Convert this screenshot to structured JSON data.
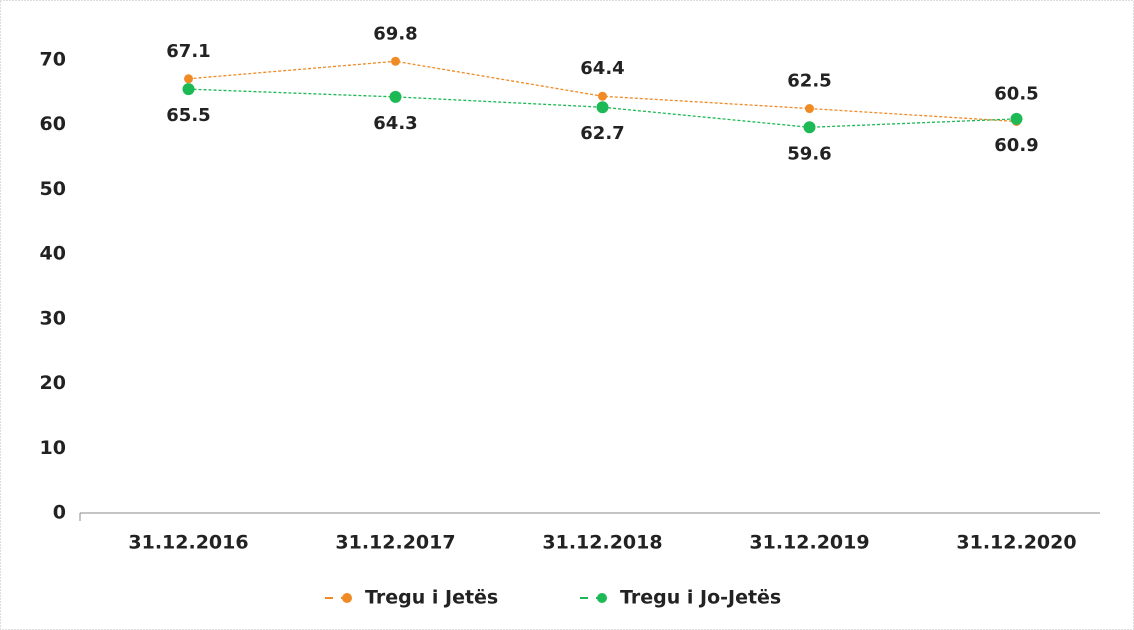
{
  "chart_data": {
    "type": "line",
    "categories": [
      "31.12.2016",
      "31.12.2017",
      "31.12.2018",
      "31.12.2019",
      "31.12.2020"
    ],
    "series": [
      {
        "name": "Tregu i Jetës",
        "color": "#f08a24",
        "values": [
          67.1,
          69.8,
          64.4,
          62.5,
          60.5
        ]
      },
      {
        "name": "Tregu i Jo-Jetës",
        "color": "#1db954",
        "values": [
          65.5,
          64.3,
          62.7,
          59.6,
          60.9
        ]
      }
    ],
    "ylim": [
      0,
      70
    ],
    "yticks": [
      0,
      10,
      20,
      30,
      40,
      50,
      60,
      70
    ],
    "grid": false,
    "legend": "bottom"
  }
}
